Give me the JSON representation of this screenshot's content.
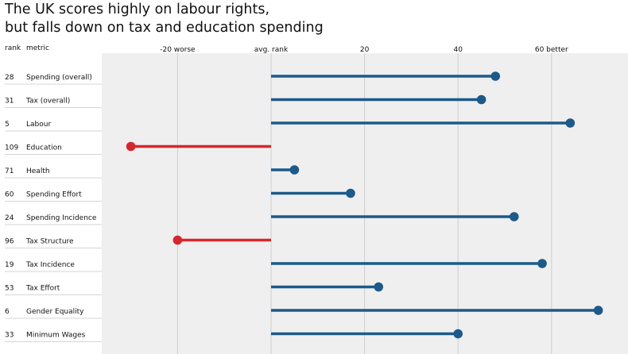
{
  "title_lines": [
    "The UK scores highly on labour rights,",
    "but falls down on tax and education spending"
  ],
  "headers": {
    "rank": "rank",
    "metric": "metric"
  },
  "colors": {
    "positive": "#1b5a8a",
    "negative": "#d9262b",
    "plot_background": "#efefef",
    "grid": "#cfcfcf",
    "row_rule": "#c8c8c8"
  },
  "chart_data": {
    "type": "lollipop",
    "baseline_label": "avg. rank",
    "x_ticks": [
      {
        "value": -20,
        "label": "-20 worse"
      },
      {
        "value": 0,
        "label": "avg. rank"
      },
      {
        "value": 20,
        "label": "20"
      },
      {
        "value": 40,
        "label": "40"
      },
      {
        "value": 60,
        "label": "60 better"
      }
    ],
    "xlim": [
      -36,
      76
    ],
    "rows": [
      {
        "rank": "28",
        "metric": "Spending (overall)",
        "value": 48
      },
      {
        "rank": "31",
        "metric": "Tax (overall)",
        "value": 45
      },
      {
        "rank": "5",
        "metric": "Labour",
        "value": 64
      },
      {
        "rank": "109",
        "metric": "Education",
        "value": -30
      },
      {
        "rank": "71",
        "metric": "Health",
        "value": 5
      },
      {
        "rank": "60",
        "metric": "Spending Effort",
        "value": 17
      },
      {
        "rank": "24",
        "metric": "Spending Incidence",
        "value": 52
      },
      {
        "rank": "96",
        "metric": "Tax Structure",
        "value": -20
      },
      {
        "rank": "19",
        "metric": "Tax Incidence",
        "value": 58
      },
      {
        "rank": "53",
        "metric": "Tax Effort",
        "value": 23
      },
      {
        "rank": "6",
        "metric": "Gender Equality",
        "value": 70
      },
      {
        "rank": "33",
        "metric": "Minimum Wages",
        "value": 40
      }
    ]
  }
}
